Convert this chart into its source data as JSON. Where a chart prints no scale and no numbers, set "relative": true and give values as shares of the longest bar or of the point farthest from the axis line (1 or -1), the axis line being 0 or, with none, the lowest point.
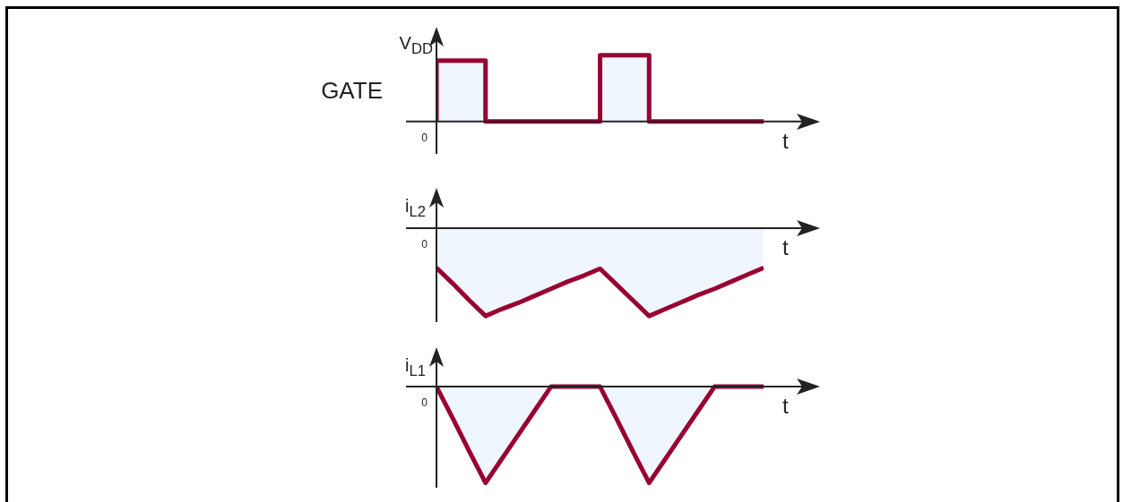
{
  "chart_data": [
    {
      "type": "step",
      "ylabel": "GATE",
      "xlabel": "t",
      "relative": true,
      "color": "#990033",
      "categories": [
        null,
        null,
        null,
        null,
        null,
        null,
        null,
        null,
        null,
        null,
        null,
        null,
        null,
        null,
        null,
        null,
        null,
        null,
        null,
        null,
        null
      ],
      "values": [
        0,
        0.92,
        0.92,
        0.92,
        0,
        0,
        0,
        0,
        0,
        0,
        0,
        1,
        1,
        1,
        0,
        0,
        0,
        0,
        0,
        0,
        0
      ],
      "annotations": [
        "0",
        "V$_{DD}$"
      ]
    },
    {
      "type": "area",
      "ylabel": "i$_{L2}$",
      "xlabel": "t",
      "relative": true,
      "color": "#990033",
      "categories": [
        null,
        null,
        null,
        null,
        null,
        null,
        null,
        null,
        null,
        null,
        null,
        null,
        null,
        null,
        null,
        null,
        null,
        null,
        null,
        null,
        null
      ],
      "values": [
        -0.45,
        -0.63,
        -0.82,
        -1,
        -0.92,
        -0.85,
        -0.77,
        -0.69,
        -0.61,
        -0.54,
        -0.46,
        -0.64,
        -0.82,
        -1,
        -0.92,
        -0.84,
        -0.76,
        -0.69,
        -0.61,
        -0.53,
        -0.45
      ],
      "annotations": [
        "0"
      ]
    },
    {
      "type": "area",
      "ylabel": "i$_{L1}$",
      "xlabel": "t",
      "relative": true,
      "color": "#990033",
      "categories": [
        null,
        null,
        null,
        null,
        null,
        null,
        null,
        null,
        null,
        null,
        null,
        null,
        null,
        null,
        null,
        null,
        null,
        null,
        null,
        null,
        null
      ],
      "values": [
        0,
        -0.33,
        -0.67,
        -1,
        -0.75,
        -0.5,
        -0.25,
        0,
        0,
        0,
        0,
        -0.33,
        -0.67,
        -1,
        -0.75,
        -0.5,
        -0.25,
        0,
        0,
        0,
        0
      ],
      "annotations": [
        "0"
      ]
    }
  ]
}
